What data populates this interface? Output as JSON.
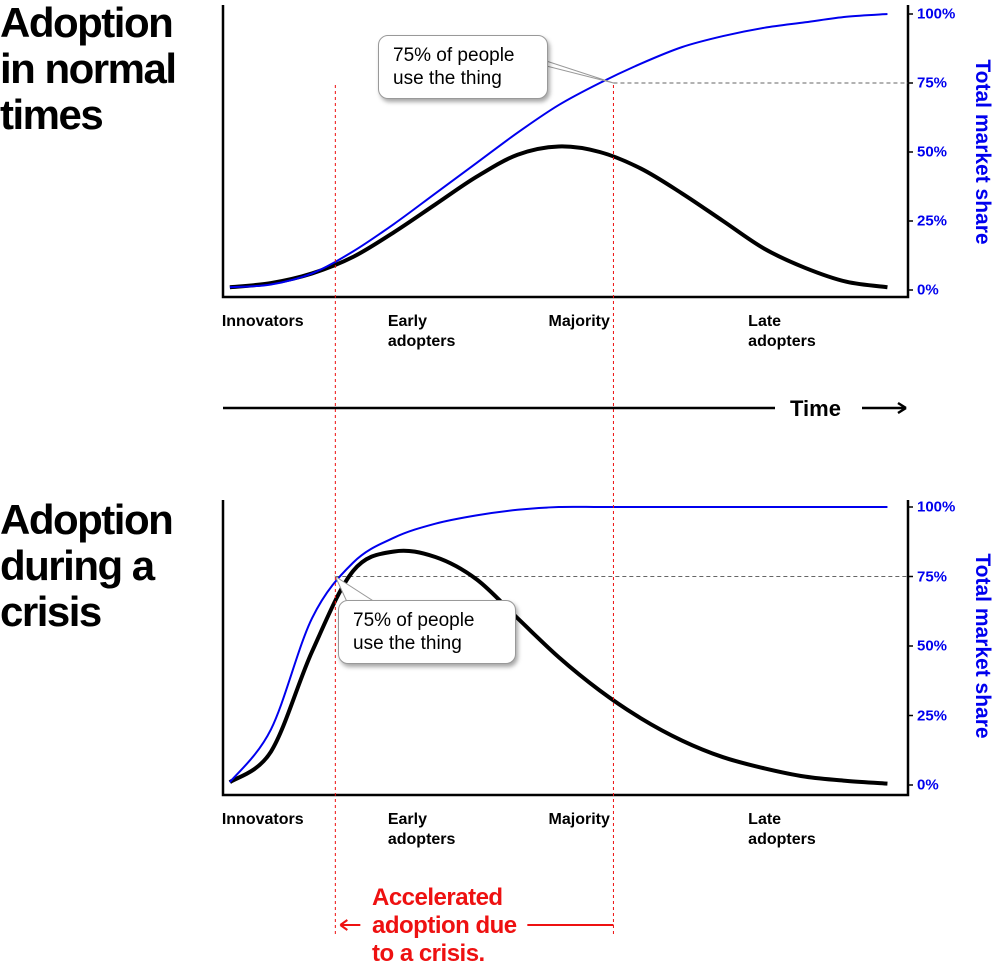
{
  "chart_data": [
    {
      "type": "line",
      "title": "Adoption in normal times",
      "x": [
        1,
        7,
        13,
        19,
        25,
        31,
        37,
        43,
        49,
        55,
        61,
        67,
        73,
        79,
        85,
        91,
        97
      ],
      "series": [
        {
          "color": "#000000",
          "values": [
            1,
            2.5,
            6,
            12,
            21,
            31,
            41,
            49,
            52,
            50,
            44,
            35,
            25,
            15,
            8,
            3,
            1
          ]
        },
        {
          "color": "#0000ee",
          "values": [
            1,
            2,
            6,
            14,
            24,
            35,
            46,
            57,
            67,
            75,
            82,
            88,
            92,
            95,
            97,
            99,
            100
          ]
        }
      ],
      "xlim": [
        0,
        100
      ],
      "xticks": [
        {
          "value": 5.8,
          "label": "Innovators"
        },
        {
          "value": 29,
          "label": "Early adopters"
        },
        {
          "value": 52,
          "label": "Majority"
        },
        {
          "value": 81.6,
          "label": "Late adopters"
        }
      ],
      "ylabel": "Total market share",
      "ylim": [
        0,
        100
      ],
      "yticks": [
        {
          "value": 0,
          "label": "0%"
        },
        {
          "value": 25,
          "label": "25%"
        },
        {
          "value": 50,
          "label": "50%"
        },
        {
          "value": 75,
          "label": "75%"
        },
        {
          "value": 100,
          "label": "100%"
        }
      ],
      "annotation": {
        "text": "75% of people use the thing",
        "x": 57,
        "y": 75
      }
    },
    {
      "type": "line",
      "title": "Adoption during a crisis",
      "x": [
        1,
        7,
        13,
        19,
        25,
        31,
        37,
        43,
        49,
        55,
        61,
        67,
        73,
        79,
        85,
        91,
        97
      ],
      "series": [
        {
          "color": "#000000",
          "values": [
            1,
            12,
            48,
            77,
            84,
            82,
            74,
            60,
            46,
            34,
            24,
            16,
            10,
            6,
            3,
            1.5,
            0.5
          ]
        },
        {
          "color": "#0000ee",
          "values": [
            1,
            20,
            60,
            80,
            89,
            94,
            97,
            99,
            100,
            100,
            100,
            100,
            100,
            100,
            100,
            100,
            100
          ]
        }
      ],
      "xlim": [
        0,
        100
      ],
      "xticks": [
        {
          "value": 5.8,
          "label": "Innovators"
        },
        {
          "value": 29,
          "label": "Early adopters"
        },
        {
          "value": 52,
          "label": "Majority"
        },
        {
          "value": 81.6,
          "label": "Late adopters"
        }
      ],
      "ylabel": "Total market share",
      "ylim": [
        0,
        100
      ],
      "yticks": [
        {
          "value": 0,
          "label": "0%"
        },
        {
          "value": 25,
          "label": "25%"
        },
        {
          "value": 50,
          "label": "50%"
        },
        {
          "value": 75,
          "label": "75%"
        },
        {
          "value": 100,
          "label": "100%"
        }
      ],
      "annotation": {
        "text": "75% of people use the thing",
        "x": 16.4,
        "y": 75
      }
    }
  ],
  "time_label": "Time",
  "crisis_label": "Accelerated adoption due to a crisis."
}
